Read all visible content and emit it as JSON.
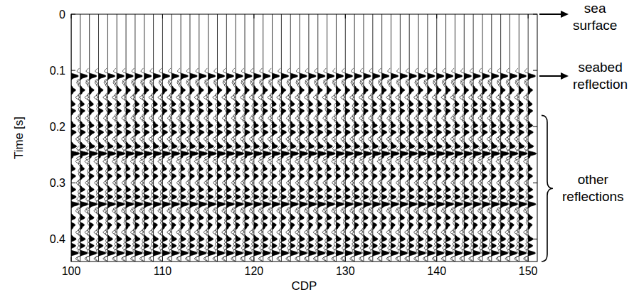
{
  "chart_data": {
    "type": "wiggle",
    "xlabel": "CDP",
    "ylabel": "Time [s]",
    "x": [
      100,
      101,
      102,
      103,
      104,
      105,
      106,
      107,
      108,
      109,
      110,
      111,
      112,
      113,
      114,
      115,
      116,
      117,
      118,
      119,
      120,
      121,
      122,
      123,
      124,
      125,
      126,
      127,
      128,
      129,
      130,
      131,
      132,
      133,
      134,
      135,
      136,
      137,
      138,
      139,
      140,
      141,
      142,
      143,
      144,
      145,
      146,
      147,
      148,
      149,
      150
    ],
    "xlim": [
      100,
      151
    ],
    "xticks": [
      100,
      110,
      120,
      130,
      140,
      150
    ],
    "ylim": [
      0,
      0.44
    ],
    "yticks": [
      0,
      0.1,
      0.2,
      0.3,
      0.4
    ],
    "reflections": {
      "time": [
        0.11,
        0.122,
        0.135,
        0.148,
        0.16,
        0.172,
        0.185,
        0.198,
        0.21,
        0.222,
        0.235,
        0.248,
        0.262,
        0.275,
        0.288,
        0.3,
        0.312,
        0.325,
        0.338,
        0.35,
        0.362,
        0.375,
        0.388,
        0.4,
        0.412,
        0.425,
        0.435
      ],
      "amplitude": [
        0.8,
        -0.4,
        0.5,
        -0.5,
        0.45,
        0.5,
        -0.45,
        0.5,
        0.55,
        -0.5,
        0.6,
        0.9,
        -0.5,
        0.45,
        0.5,
        -0.45,
        0.5,
        0.55,
        0.85,
        -0.5,
        0.5,
        0.45,
        -0.5,
        0.55,
        0.5,
        0.8,
        -0.5
      ]
    },
    "annotations": [
      {
        "text": "sea surface",
        "y": 0
      },
      {
        "text": "seabed reflection",
        "y": 0.11
      },
      {
        "text": "other reflections",
        "y_range": [
          0.18,
          0.44
        ]
      }
    ]
  }
}
